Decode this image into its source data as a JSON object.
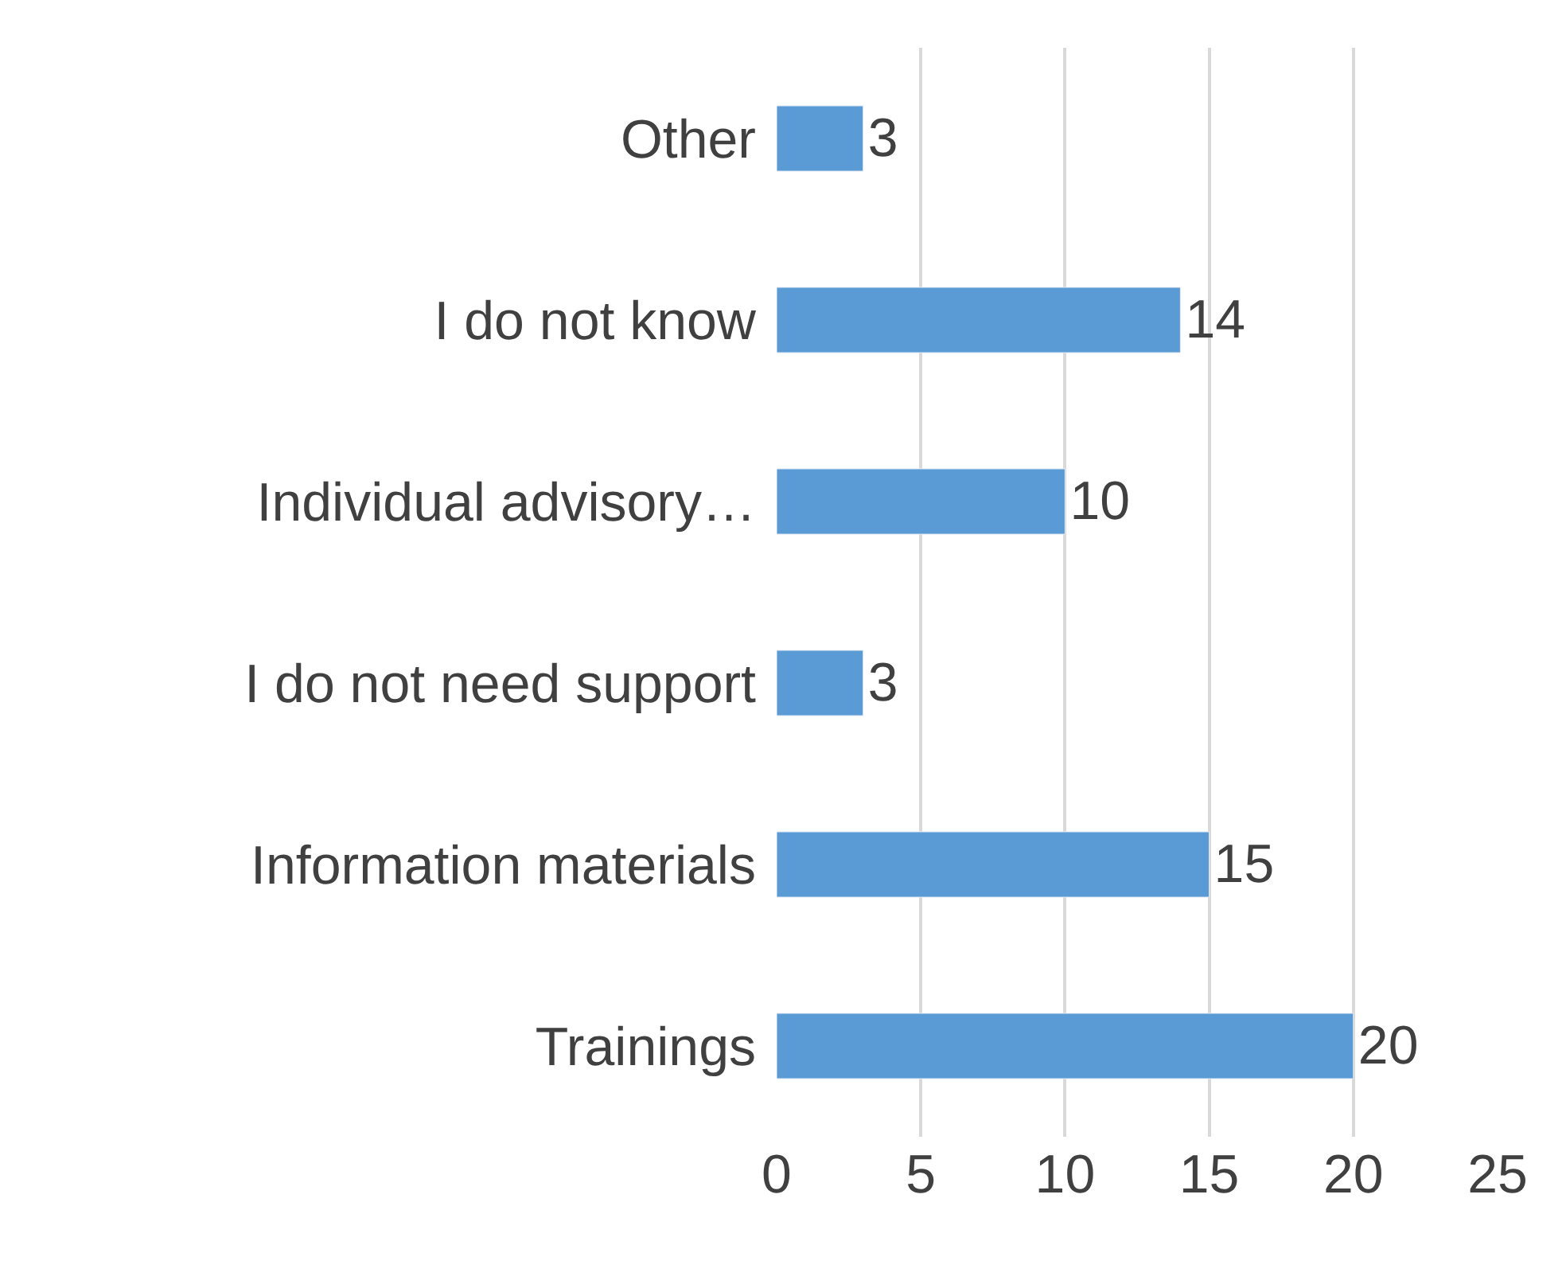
{
  "chart_data": {
    "type": "bar",
    "orientation": "horizontal",
    "categories": [
      "Other",
      "I do not know",
      "Individual advisory…",
      "I do not need support",
      "Information materials",
      "Trainings"
    ],
    "values": [
      3,
      14,
      10,
      3,
      15,
      20
    ],
    "color": "#5b9bd5",
    "xlim": [
      0,
      25
    ],
    "xticks": [
      0,
      5,
      10,
      15,
      20,
      25
    ],
    "grid": "x",
    "data_labels": true
  }
}
